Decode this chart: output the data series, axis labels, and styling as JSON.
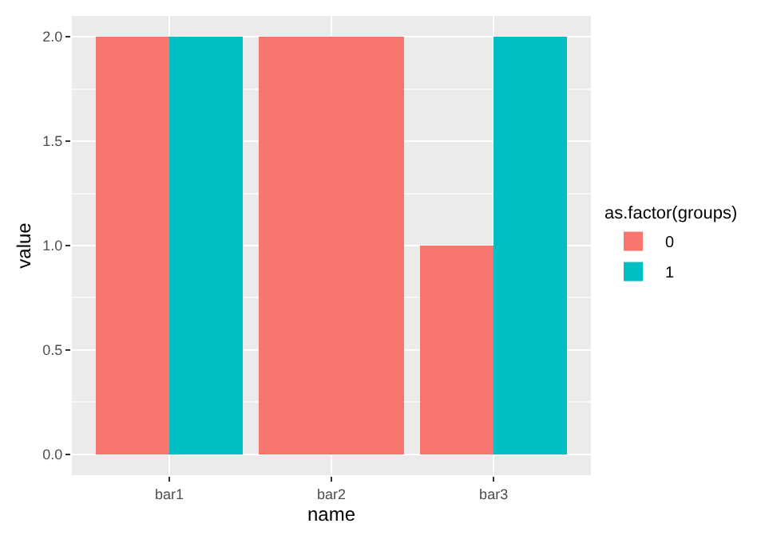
{
  "chart_data": {
    "type": "bar",
    "xlabel": "name",
    "ylabel": "value",
    "legend_title": "as.factor(groups)",
    "categories": [
      "bar1",
      "bar2",
      "bar3"
    ],
    "series": [
      {
        "name": "0",
        "color": "#f8766d",
        "values": [
          2,
          2,
          1
        ]
      },
      {
        "name": "1",
        "color": "#00bfc4",
        "values": [
          2,
          null,
          2
        ]
      }
    ],
    "ylim": [
      -0.1,
      2.1
    ],
    "yticks": [
      {
        "value": 0,
        "label": "0.0"
      },
      {
        "value": 0.5,
        "label": "0.5"
      },
      {
        "value": 1,
        "label": "1.0"
      },
      {
        "value": 1.5,
        "label": "1.5"
      },
      {
        "value": 2,
        "label": "2.0"
      }
    ],
    "grid": true,
    "legend": "right"
  }
}
